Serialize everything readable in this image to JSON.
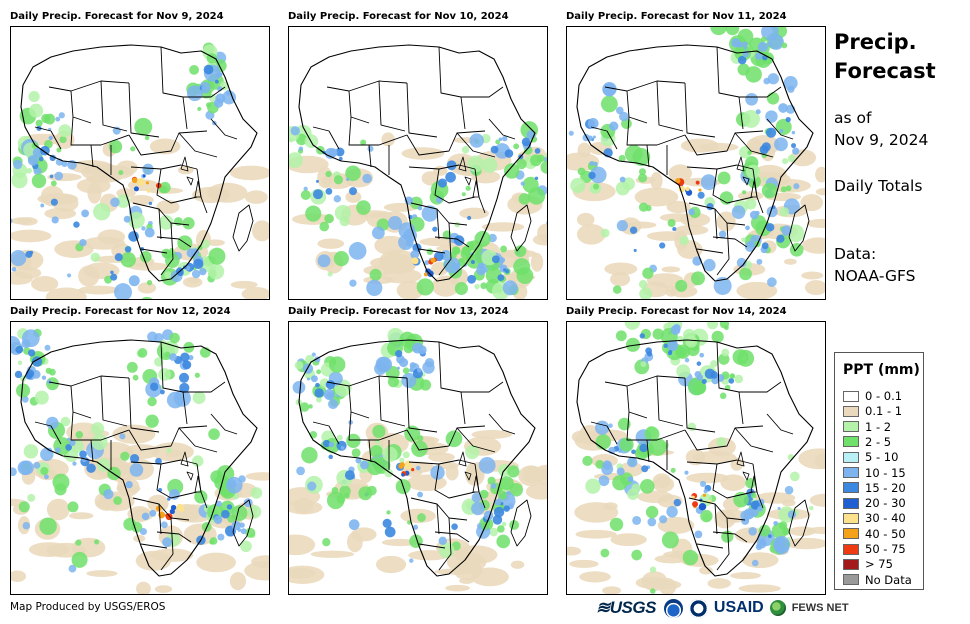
{
  "panels": [
    {
      "title": "Daily Precip. Forecast for Nov 9, 2024"
    },
    {
      "title": "Daily Precip. Forecast for Nov 10, 2024"
    },
    {
      "title": "Daily Precip. Forecast for Nov 11, 2024"
    },
    {
      "title": "Daily Precip. Forecast for Nov 12, 2024"
    },
    {
      "title": "Daily Precip. Forecast for Nov 13, 2024"
    },
    {
      "title": "Daily Precip. Forecast for Nov 14, 2024"
    }
  ],
  "side": {
    "title_line1": "Precip.",
    "title_line2": "Forecast",
    "asof_line1": "as of",
    "asof_line2": "Nov 9, 2024",
    "totals": "Daily Totals",
    "data_line1": "Data:",
    "data_line2": "NOAA-GFS"
  },
  "legend": {
    "title": "PPT (mm)",
    "items": [
      {
        "label": "0 - 0.1",
        "color": "#ffffff"
      },
      {
        "label": "0.1 - 1",
        "color": "#ead9bd"
      },
      {
        "label": "1 - 2",
        "color": "#b3f2a8"
      },
      {
        "label": "2 - 5",
        "color": "#6fe06a"
      },
      {
        "label": "5 - 10",
        "color": "#b8f0f5"
      },
      {
        "label": "10 - 15",
        "color": "#7db4f0"
      },
      {
        "label": "15 - 20",
        "color": "#3c87e0"
      },
      {
        "label": "20 - 30",
        "color": "#1f5fd1"
      },
      {
        "label": "30 - 40",
        "color": "#fce28c"
      },
      {
        "label": "40 - 50",
        "color": "#f5a21a"
      },
      {
        "label": "50 - 75",
        "color": "#ee3b11"
      },
      {
        "label": "> 75",
        "color": "#a31a1a"
      },
      {
        "label": "No Data",
        "color": "#999999"
      }
    ]
  },
  "footer": {
    "credit": "Map Produced by USGS/EROS",
    "logo_usgs": "≋USGS",
    "logo_usaid": "USAID",
    "logo_fews": "FEWS NET"
  }
}
